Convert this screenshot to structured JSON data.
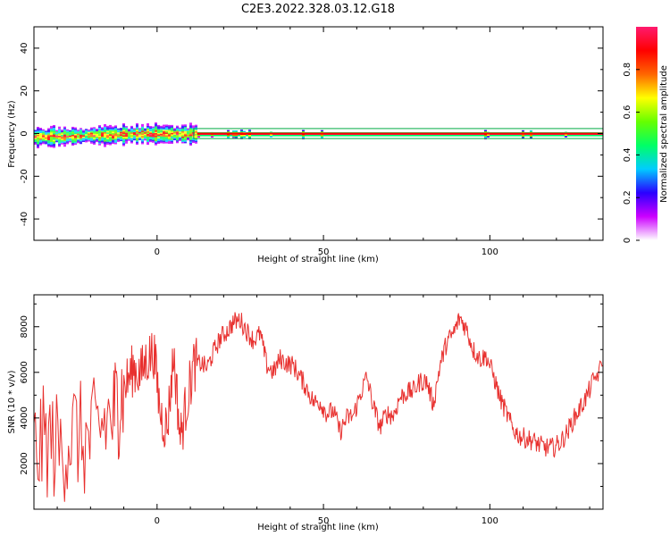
{
  "figure_title": "C2E3.2022.328.03.12.G18",
  "chart_data": [
    {
      "type": "heatmap",
      "xlabel": "Height of straight line (km)",
      "ylabel": "Frequency (Hz)",
      "xlim": [
        -37,
        134
      ],
      "ylim": [
        -50,
        50
      ],
      "xticks": [
        0,
        50,
        100
      ],
      "yticks": [
        -40,
        -20,
        0,
        20,
        40
      ],
      "colorbar": {
        "label": "Normalized spectral amplitude",
        "range": [
          0,
          1
        ],
        "ticks": [
          0.0,
          0.2,
          0.4,
          0.6,
          0.8
        ],
        "colormap": [
          "#ffffff",
          "#cc00ff",
          "#2a00ff",
          "#00ccff",
          "#00ff66",
          "#66ff00",
          "#ffff00",
          "#ff6600",
          "#ff0000",
          "#ff1a6e"
        ]
      },
      "ridge_frequency_hz": 0,
      "noisy_region_end_km": 12,
      "annotation_box": {
        "x_start_km": 11,
        "x_end_km": 134,
        "freq_low_hz": -1.5,
        "freq_high_hz": 1.5
      },
      "band_color": "#00aa44"
    },
    {
      "type": "line",
      "xlabel": "Height of straight line (km)",
      "ylabel": "SNR (10 * v/v)",
      "xlim": [
        -37,
        134
      ],
      "ylim": [
        0,
        9400
      ],
      "xticks": [
        0,
        50,
        100
      ],
      "yticks": [
        2000,
        4000,
        6000,
        8000
      ],
      "line_color": "#e8302e",
      "series": [
        {
          "x": [
            -37,
            -33,
            -29,
            -25,
            -21,
            -17,
            -13,
            -11,
            -9,
            -7,
            -5,
            -3,
            -1,
            1,
            3,
            5,
            7,
            9,
            11,
            13,
            15,
            17,
            19,
            21,
            23,
            25,
            27,
            29,
            31,
            33,
            35,
            37,
            39,
            41,
            43,
            45,
            47,
            49,
            51,
            53,
            55,
            57,
            59,
            61,
            63,
            65,
            67,
            69,
            71,
            73,
            75,
            77,
            79,
            81,
            83,
            85,
            87,
            89,
            91,
            93,
            95,
            97,
            99,
            101,
            103,
            105,
            107,
            109,
            111,
            113,
            115,
            117,
            119,
            121,
            123,
            125,
            127,
            129,
            131,
            134
          ],
          "values": [
            2500,
            3000,
            2600,
            3400,
            2800,
            3600,
            4200,
            5000,
            5600,
            6200,
            5900,
            6600,
            6900,
            4200,
            3500,
            6800,
            3100,
            4800,
            6300,
            6400,
            6200,
            6900,
            7500,
            7800,
            8200,
            8300,
            7800,
            7400,
            7700,
            6300,
            6000,
            6600,
            6400,
            6300,
            5800,
            5300,
            4700,
            4700,
            4200,
            4300,
            3400,
            4000,
            4100,
            5000,
            5800,
            4500,
            3600,
            4200,
            4100,
            4900,
            5100,
            5200,
            5600,
            5600,
            4600,
            6300,
            7300,
            7700,
            8400,
            7900,
            7000,
            6600,
            6700,
            5900,
            4900,
            4200,
            3500,
            3200,
            3100,
            3000,
            2800,
            2700,
            2700,
            2900,
            3300,
            3900,
            4400,
            4900,
            5600,
            6300
          ]
        }
      ]
    }
  ]
}
